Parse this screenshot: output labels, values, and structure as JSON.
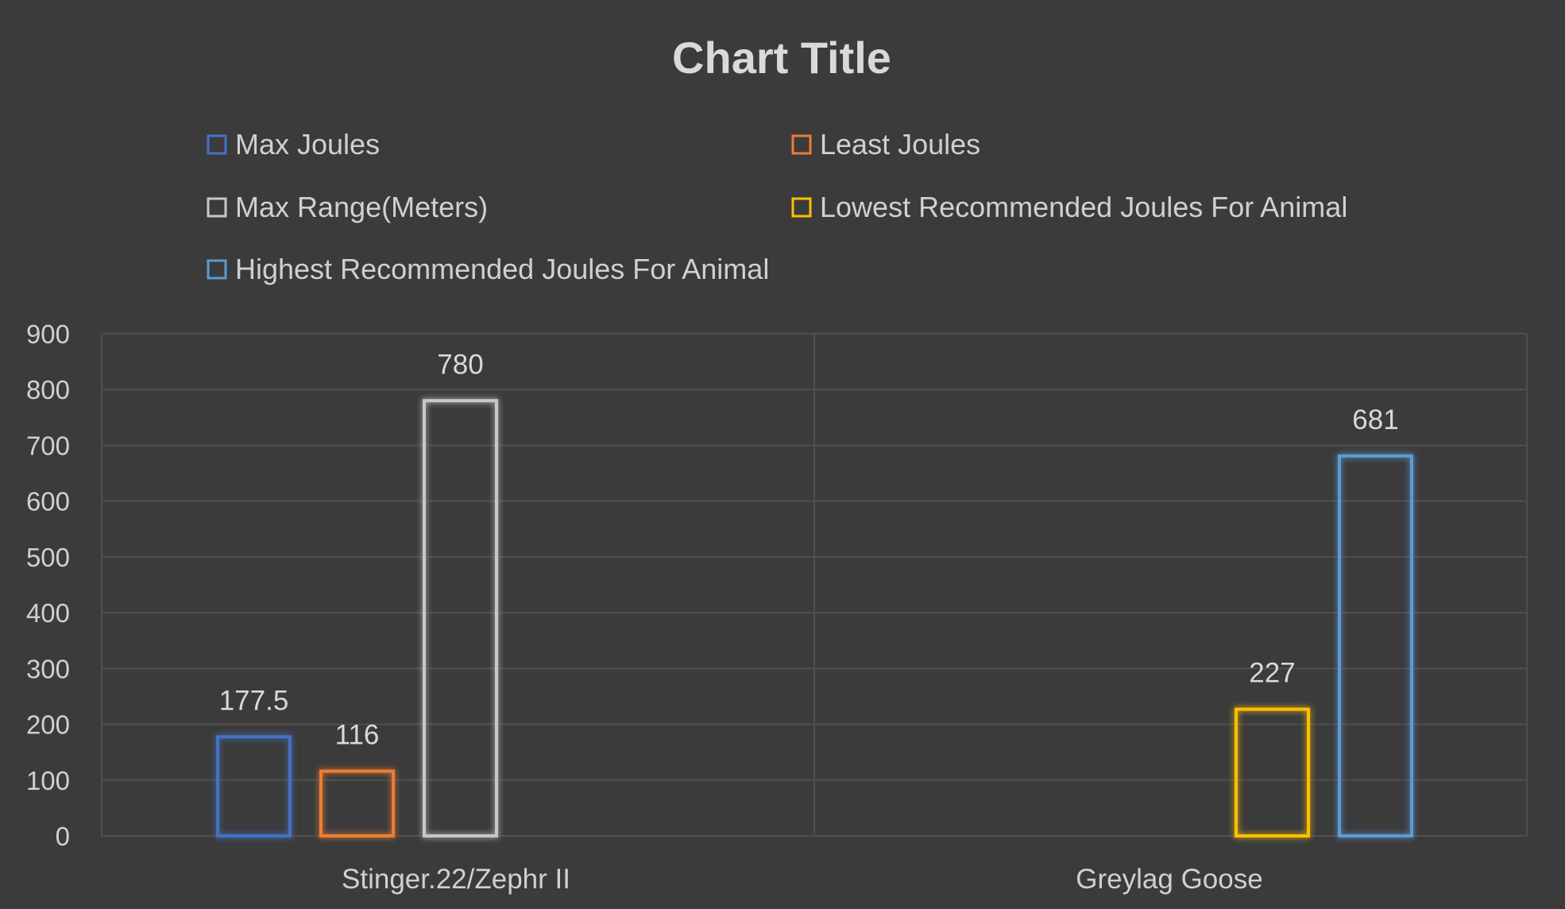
{
  "chart_data": {
    "type": "bar",
    "title": "Chart Title",
    "categories": [
      "Stinger.22/Zephr II",
      "Greylag Goose"
    ],
    "series": [
      {
        "name": "Max Joules",
        "values": [
          177.5,
          null
        ],
        "color": "#4472c4"
      },
      {
        "name": "Least Joules",
        "values": [
          116,
          null
        ],
        "color": "#ed7d31"
      },
      {
        "name": "Max Range(Meters)",
        "values": [
          780,
          null
        ],
        "color": "#c8c8c8"
      },
      {
        "name": "Lowest Recommended Joules For Animal",
        "values": [
          null,
          227
        ],
        "color": "#ffc000"
      },
      {
        "name": "Highest Recommended Joules For Animal",
        "values": [
          null,
          681
        ],
        "color": "#5b9bd5"
      }
    ],
    "data_labels": [
      "177.5",
      "116",
      "780",
      "227",
      "681"
    ],
    "yticks": [
      "0",
      "100",
      "200",
      "300",
      "400",
      "500",
      "600",
      "700",
      "800",
      "900"
    ],
    "ylim": [
      0,
      900
    ],
    "grid": true,
    "legend_position": "top",
    "bar_style": "outline"
  }
}
